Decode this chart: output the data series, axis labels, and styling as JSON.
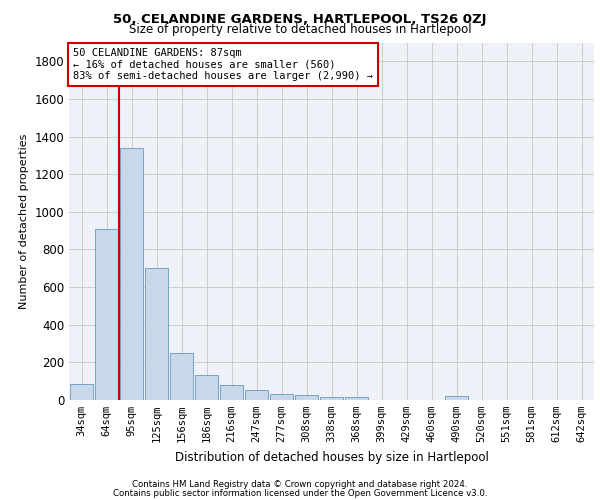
{
  "title": "50, CELANDINE GARDENS, HARTLEPOOL, TS26 0ZJ",
  "subtitle": "Size of property relative to detached houses in Hartlepool",
  "xlabel": "Distribution of detached houses by size in Hartlepool",
  "ylabel": "Number of detached properties",
  "categories": [
    "34sqm",
    "64sqm",
    "95sqm",
    "125sqm",
    "156sqm",
    "186sqm",
    "216sqm",
    "247sqm",
    "277sqm",
    "308sqm",
    "338sqm",
    "368sqm",
    "399sqm",
    "429sqm",
    "460sqm",
    "490sqm",
    "520sqm",
    "551sqm",
    "581sqm",
    "612sqm",
    "642sqm"
  ],
  "values": [
    85,
    910,
    1340,
    700,
    250,
    135,
    80,
    55,
    30,
    25,
    18,
    15,
    0,
    0,
    0,
    20,
    0,
    0,
    0,
    0,
    0
  ],
  "bar_color": "#c8d8ea",
  "bar_edge_color": "#6699bb",
  "vline_color": "#cc0000",
  "vline_x_index": 1.5,
  "annotation_lines": [
    "50 CELANDINE GARDENS: 87sqm",
    "← 16% of detached houses are smaller (560)",
    "83% of semi-detached houses are larger (2,990) →"
  ],
  "annotation_box_color": "#cc0000",
  "ylim": [
    0,
    1900
  ],
  "yticks": [
    0,
    200,
    400,
    600,
    800,
    1000,
    1200,
    1400,
    1600,
    1800
  ],
  "grid_color": "#cccccc",
  "background_color": "#eef2f8",
  "footer_line1": "Contains HM Land Registry data © Crown copyright and database right 2024.",
  "footer_line2": "Contains public sector information licensed under the Open Government Licence v3.0."
}
